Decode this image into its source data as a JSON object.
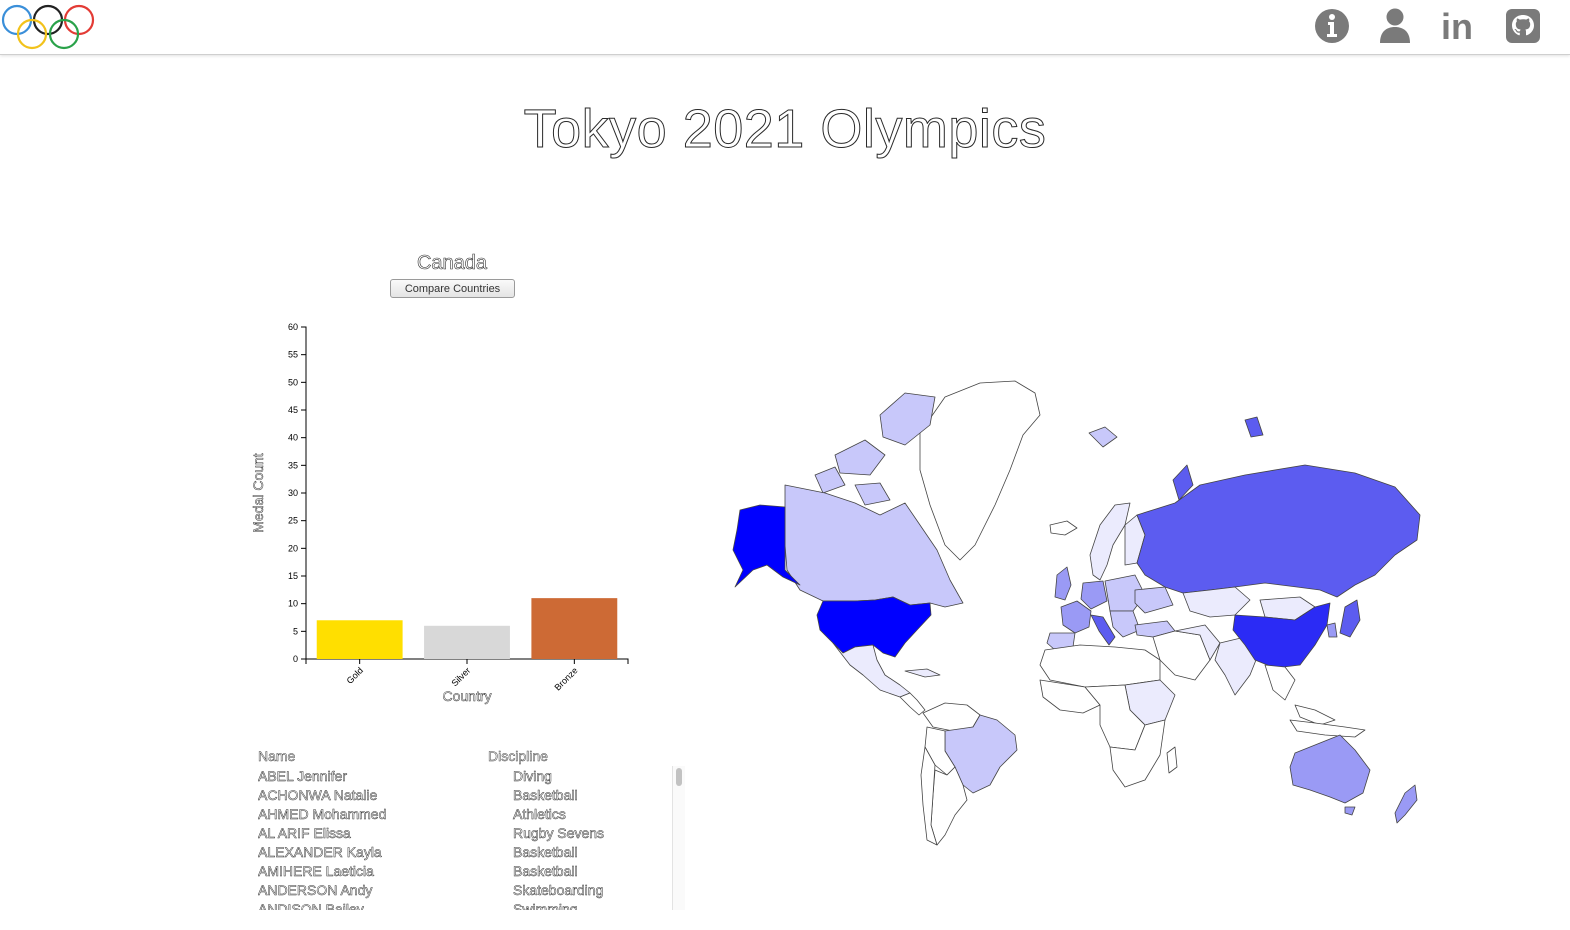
{
  "header": {
    "icons": [
      {
        "name": "info-icon"
      },
      {
        "name": "user-icon"
      },
      {
        "name": "linkedin-icon",
        "text": "in"
      },
      {
        "name": "github-icon"
      }
    ]
  },
  "page": {
    "title": "Tokyo 2021 Olympics"
  },
  "medal_panel": {
    "country": "Canada",
    "compare_button": "Compare Countries"
  },
  "chart_data": {
    "type": "bar",
    "categories": [
      "Gold",
      "Silver",
      "Bronze"
    ],
    "values": [
      7,
      6,
      11
    ],
    "colors": [
      "#ffdf00",
      "#d8d8d8",
      "#cd6a35"
    ],
    "xlabel": "Country",
    "ylabel": "Medal Count",
    "ylim": [
      0,
      60
    ],
    "yticks": [
      0,
      5,
      10,
      15,
      20,
      25,
      30,
      35,
      40,
      45,
      50,
      55,
      60
    ]
  },
  "athletes": {
    "columns": [
      "Name",
      "Discipline"
    ],
    "rows": [
      {
        "name": "ABEL Jennifer",
        "discipline": "Diving"
      },
      {
        "name": "ACHONWA Natalie",
        "discipline": "Basketball"
      },
      {
        "name": "AHMED Mohammed",
        "discipline": "Athletics"
      },
      {
        "name": "AL ARIF Elissa",
        "discipline": "Rugby Sevens"
      },
      {
        "name": "ALEXANDER Kayla",
        "discipline": "Basketball"
      },
      {
        "name": "AMIHERE Laeticia",
        "discipline": "Basketball"
      },
      {
        "name": "ANDERSON Andy",
        "discipline": "Skateboarding"
      },
      {
        "name": "ANDISON Bailey",
        "discipline": "Swimming"
      }
    ]
  },
  "map": {
    "colors": {
      "max": "#0000ff",
      "high": "#2b2bf5",
      "mid": "#5c5cf0",
      "low": "#9a9af5",
      "lighter": "#c8c8fa",
      "lightest": "#ebebfd",
      "none": "#ffffff"
    }
  }
}
